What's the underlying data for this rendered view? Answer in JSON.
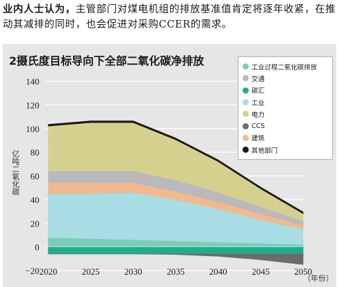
{
  "intro": {
    "bold": "业内人士认为，",
    "rest": "主管部门对煤电机组的排放基准值肯定将逐年收紧，在推动其减排的同时，也会促进对采购CCER的需求。"
  },
  "chart_data": {
    "type": "area",
    "title": "2摄氏度目标导向下全部二氧化碳净排放",
    "ylabel": "亿吨二氧化碳",
    "x_unit": "（年份）",
    "x": [
      2020,
      2025,
      2030,
      2035,
      2040,
      2045,
      2050
    ],
    "x_ticks": [
      "2020",
      "2025",
      "2030",
      "2035",
      "2040",
      "2045",
      "2050"
    ],
    "ylim": [
      -20,
      140
    ],
    "y_ticks": [
      "−20",
      "0",
      "20",
      "40",
      "60",
      "80",
      "100",
      "120",
      "140"
    ],
    "grid": true,
    "legend_position": "top-right",
    "series": [
      {
        "name": "工业过程二氧化碳排放",
        "color": "#7fcbb9",
        "values": [
          8,
          7,
          6,
          5,
          4,
          3,
          2
        ]
      },
      {
        "name": "交通",
        "color": "#b9b9be",
        "values": [
          10,
          10,
          10,
          9.5,
          8,
          6,
          4
        ]
      },
      {
        "name": "碳汇",
        "color": "#1fae8c",
        "values": [
          -6,
          -6,
          -6,
          -6,
          -6,
          -6,
          -6
        ]
      },
      {
        "name": "工业",
        "color": "#a8dde3",
        "values": [
          37,
          38,
          40,
          35,
          28,
          20,
          13
        ]
      },
      {
        "name": "电力",
        "color": "#d6d08e",
        "values": [
          38,
          41,
          41,
          34,
          26,
          15,
          6
        ]
      },
      {
        "name": "CCS",
        "color": "#6b6b6b",
        "values": [
          0,
          0,
          0,
          -0.5,
          -2,
          -5,
          -9
        ]
      },
      {
        "name": "建筑",
        "color": "#f3b98e",
        "values": [
          9,
          9,
          8,
          7,
          6,
          5,
          3
        ]
      },
      {
        "name": "其他部门",
        "color": "#1a1a1a",
        "values": [
          1.5,
          1.5,
          1.5,
          1.5,
          1.5,
          1.5,
          1.5
        ]
      }
    ],
    "stack_order_positive": [
      "工业过程二氧化碳排放",
      "工业",
      "建筑",
      "交通",
      "电力",
      "其他部门"
    ],
    "stack_order_negative": [
      "碳汇",
      "CCS"
    ]
  }
}
